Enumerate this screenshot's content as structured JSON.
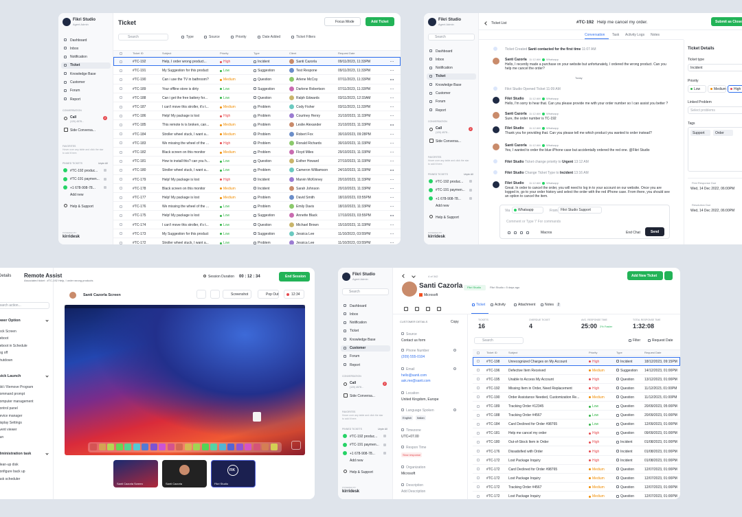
{
  "common": {
    "search": "Search"
  },
  "sidebar": {
    "workspace": "Fikri Studio",
    "role": "Agent Admin",
    "nav": [
      "Dashboard",
      "Inbox",
      "Notification",
      "Ticket",
      "Knowledge Base",
      "Customer",
      "Forum",
      "Report"
    ],
    "conversation_label": "CONVERSATION",
    "call": "Call",
    "call_number": "(120) 4578...",
    "call_badge": 2,
    "side_conversation": "Side Conversa...",
    "favorites_label": "FAVORITES",
    "favorites_hint": "Hover over any table and click the star to add it here.",
    "pinned_label": "PINNED TICKETS",
    "unpin": "Unpin All",
    "pinned": [
      "#TC-192 produc...",
      "#TC-191 paymen...",
      "+1 678-908-78..."
    ],
    "add_new": "Add new",
    "help": "Help & Support",
    "powered": "POWERED BY",
    "brand": "kirridesk"
  },
  "ticket_list": {
    "title": "Ticket",
    "focus_mode": "Focus Mode",
    "add_ticket": "Add Ticket",
    "filters": [
      "Type",
      "Source",
      "Priority",
      "Date Added",
      "Ticket Filters"
    ],
    "columns": [
      "Ticket ID",
      "Subject",
      "Priority",
      "Type",
      "Client",
      "Request Date"
    ],
    "rows": [
      [
        "#TC-192",
        "Help, I order wrong product...",
        "High",
        "Incident",
        "Santi Cazorla",
        "09/11/2023, 11:33PM"
      ],
      [
        "#TC-191",
        "My Suggestion for this product",
        "Low",
        "Suggestion",
        "Test Respone",
        "09/11/2023, 11:33PM"
      ],
      [
        "#TC-190",
        "Can i use the TV in bathroom?",
        "Medium",
        "Question",
        "Arlene McCoy",
        "07/11/2023, 11:33PM"
      ],
      [
        "#TC-189",
        "Your offline store is dirty",
        "Low",
        "Suggestion",
        "Darlene Robertson",
        "07/11/2023, 11:33PM"
      ],
      [
        "#TC-188",
        "Can i get the free battery for...",
        "Low",
        "Question",
        "Ralph Edwards",
        "03/11/2023, 12:33AM"
      ],
      [
        "#TC-187",
        "I can't move this stroller, it's t...",
        "Medium",
        "Problem",
        "Cody Fisher",
        "03/11/2023, 11:33PM"
      ],
      [
        "#TC-186",
        "Help! My package is lost",
        "High",
        "Problem",
        "Courtney Henry",
        "31/10/2023, 11:33PM"
      ],
      [
        "#TC-185",
        "This remote tv is broken, can...",
        "Medium",
        "Problem",
        "Leslie Alexander",
        "31/10/2023, 11:33PM"
      ],
      [
        "#TC-184",
        "Stroller wheel stuck, I want a...",
        "Medium",
        "Problem",
        "Robert Fox",
        "30/10/2023, 09:28PM"
      ],
      [
        "#TC-183",
        "We missing the wheel of the ...",
        "High",
        "Problem",
        "Ronald Richards",
        "30/10/2023, 11:33PM"
      ],
      [
        "#TC-182",
        "Black screen on this monitor",
        "Medium",
        "Problem",
        "Floyd Miles",
        "29/10/2023, 11:33PM"
      ],
      [
        "#TC-181",
        "How to install this? can you h...",
        "Low",
        "Question",
        "Esther Howard",
        "27/10/2023, 11:33PM"
      ],
      [
        "#TC-180",
        "Stroller wheel stuck, I want a...",
        "Low",
        "Problem",
        "Cameron Williamson",
        "24/10/2023, 11:33PM"
      ],
      [
        "#TC-179",
        "Help! My package is lost",
        "High",
        "Incident",
        "Marvin McKinney",
        "20/10/2023, 11:33PM"
      ],
      [
        "#TC-178",
        "Black screen on this monitor",
        "Medium",
        "Incident",
        "Sarah Johnson",
        "20/10/2023, 11:33PM"
      ],
      [
        "#TC-177",
        "Help! My package is lost",
        "Medium",
        "Problem",
        "David Smith",
        "18/10/2023, 03:55PM"
      ],
      [
        "#TC-176",
        "We missing the wheel of the ...",
        "Low",
        "Problem",
        "Emily Davis",
        "18/10/2023, 11:33PM"
      ],
      [
        "#TC-175",
        "Help! My package is lost",
        "Low",
        "Suggestion",
        "Annette Black",
        "17/10/2023, 03:55PM"
      ],
      [
        "#TC-174",
        "I can't move this stroller, it's t...",
        "Low",
        "Question",
        "Michael Brown",
        "15/10/2023, 11:33PM"
      ],
      [
        "#TC-173",
        "My Suggestion for this product",
        "Low",
        "Suggestion",
        "Jessica Lee",
        "11/10/2023, 03:55PM"
      ],
      [
        "#TC-172",
        "Stroller wheel stuck, I want a...",
        "Low",
        "Problem",
        "Jessica Lee",
        "11/10/2023, 03:55PM"
      ]
    ]
  },
  "ticket_detail": {
    "back": "Ticket List",
    "ticket_id": "#TC-192",
    "subject": "Help me cancel my order.",
    "submit": "Submit as Close",
    "tabs": [
      "Conversation",
      "Task",
      "Activity Logs",
      "Notes"
    ],
    "timeline": [
      {
        "parts": [
          "Ticket Created",
          "Santi contacted for the first time"
        ],
        "time": "11:07 AM"
      },
      {
        "author": "Santi Cazorla",
        "time": "11:12 AM",
        "via": "Whatsapp",
        "text": "Hello, I recently made a purchase on your website but unfortunately, I ordered the wrong product. Can you help me cancel the order?"
      },
      {
        "label": "Today"
      },
      {
        "parts": [
          "Fikri Studio",
          "Opened Ticket"
        ],
        "time": "11:09 AM"
      },
      {
        "author": "Fikri Studio",
        "time": "11:12 AM",
        "via": "Whatsapp",
        "text": "Hello, I'm sorry to hear that. Can you please provide me with your order number so I can assist you better ?"
      },
      {
        "author": "Santi Cazorla",
        "time": "11:12 AM",
        "via": "Whatsapp",
        "text": "Sure, the order number is TC-192"
      },
      {
        "author": "Fikri Studio",
        "time": "11:12 AM",
        "via": "Whatsapp",
        "text": "Thank you for providing that. Can you please tell me which product you wanted to order instead?"
      },
      {
        "author": "Santi Cazorla",
        "time": "11:12 AM",
        "via": "Whatsapp",
        "text": "Yes, I wanted to order the blue iPhone case but accidentally ordered the red one. @Fikri Studio"
      },
      {
        "parts": [
          "Fikri Studio",
          "Ticket change priority to",
          "Urgent"
        ],
        "time": "13:12 AM"
      },
      {
        "parts": [
          "Fikri Studio",
          "Change Ticket Type to",
          "Incident"
        ],
        "time": "13:16 AM"
      },
      {
        "author": "Fikri Studio",
        "time": "11:12 AM",
        "via": "Whatsapp",
        "text": "Great. In order to cancel the order, you will need to log in to your account on our website. Once you are logged in, go to your order history and select the order with the red iPhone case. From there, you should see an option to cancel the item."
      }
    ],
    "composer": {
      "via": "Via",
      "channel": "Whatsapp",
      "from": "From",
      "sender": "Fikri Studio Support",
      "placeholder": "Comment or Type '/' For commands",
      "macros": "Macros",
      "end_chat": "End Chat",
      "send": "Send"
    },
    "details": {
      "title": "Ticket Details",
      "type_label": "Ticket type",
      "type": "Incident",
      "priority_label": "Priority",
      "priorities": [
        "Low",
        "Medium",
        "High"
      ],
      "linked_label": "Linked Problem",
      "linked_placeholder": "Select problems",
      "tags_label": "Tags",
      "tags": [
        "Support",
        "Order"
      ],
      "first_due_label": "First Response Due",
      "first_due": "Wed, 14 Dec 2022, 06:00PM",
      "resolution_label": "Resolution Due",
      "resolution_due": "Wed, 14 Dec 2022, 06:00PM"
    }
  },
  "remote_assist": {
    "back": "Details",
    "title": "Remote Assist",
    "ticket": "Associated ticket : #TC-192 Help, I order wrong products",
    "duration_label": "Session Duration",
    "duration": "00 : 12 : 34",
    "end": "End Session",
    "search": "Search action...",
    "groups": [
      {
        "title": "Power Option",
        "items": [
          "Lock Screen",
          "Reboot",
          "Reboot in Schedule",
          "Log off",
          "Shutdown"
        ]
      },
      {
        "title": "Quick Launch",
        "items": [
          "Add / Remove Program",
          "Command prompt",
          "Computer management",
          "Control panel",
          "Device manager",
          "Display Settings",
          "Event viewer",
          "Run"
        ]
      },
      {
        "title": "Administration task",
        "items": [
          "Clean-up disk",
          "Configure back up",
          "Task scheduler"
        ]
      }
    ],
    "screen_title": "Santi Cazorla Screen",
    "tools": [
      "Screenshot",
      "Pop Out"
    ],
    "timer": "12:34",
    "thumbnails": [
      "Santi Cazorla Screen",
      "Santi Cazorla",
      "Fikri Studio"
    ],
    "logo": "FIK"
  },
  "customer": {
    "pager": "4 of 342",
    "add_ticket": "Add New Ticket",
    "name": "Santi Cazorla",
    "tag": "Fikri Studio",
    "meta": "Fikri Studio • 5 days ago",
    "company": "Microsoft",
    "tabs": [
      "Ticket",
      "Activity",
      "Attachment",
      "Notes"
    ],
    "notes_count": 2,
    "details_title": "CUSTOMER DETAILS",
    "copy": "Copy",
    "fields": [
      {
        "label": "Source",
        "values": [
          "Contact us form"
        ]
      },
      {
        "label": "Phone Number",
        "values": [
          "(209) 555-0104"
        ]
      },
      {
        "label": "Email",
        "values": [
          "hello@santi.com",
          "ask.me@santi.com"
        ]
      },
      {
        "label": "Location",
        "values": [
          "United Kingdom, Europe"
        ]
      },
      {
        "label": "Language Spoken",
        "chips": [
          "English",
          "Italian"
        ]
      },
      {
        "label": "Timezone",
        "values": [
          "UTC+07.00"
        ]
      },
      {
        "label": "Respon Time",
        "chips": [
          "Slow response"
        ]
      },
      {
        "label": "Organization",
        "values": [
          "Microsoft"
        ]
      },
      {
        "label": "Description",
        "values": [
          "Add Description"
        ]
      }
    ],
    "stats": [
      {
        "label": "TICKETS",
        "value": 16
      },
      {
        "label": "OVERDUE TICKET",
        "value": 4
      },
      {
        "label": "AVG. RESPONSE TIME",
        "value": "25:00",
        "note": "2% Faster"
      },
      {
        "label": "TOTAL RESPONSE TIME",
        "value": "1:32:08"
      }
    ],
    "filter": "Filter",
    "sort": "Request Date",
    "columns": [
      "Ticket ID",
      "Subject",
      "Priority",
      "Type",
      "Request Date"
    ],
    "rows": [
      [
        "#TC-198",
        "Unrecognized Charges on My Account",
        "High",
        "Incident",
        "18/12/2023, 09:15PM"
      ],
      [
        "#TC-196",
        "Defective Item Received",
        "Medium",
        "Suggestion",
        "14/12/2023, 01:00PM"
      ],
      [
        "#TC-195",
        "Unable to Access My Account",
        "High",
        "Question",
        "13/12/2023, 01:00PM"
      ],
      [
        "#TC-192",
        "Missing Item in Order, Need Replacement",
        "High",
        "Question",
        "11/12/2023, 01:00PM"
      ],
      [
        "#TC-190",
        "Order Assistance Needed, Customization Re...",
        "Medium",
        "Question",
        "11/12/2023, 01:00PM"
      ],
      [
        "#TC-189",
        "Tracking Order #12345",
        "Low",
        "Question",
        "20/09/2023, 05:00PM"
      ],
      [
        "#TC-188",
        "Tracking Order #4567",
        "Low",
        "Question",
        "20/09/2023, 01:00PM"
      ],
      [
        "#TC-184",
        "Card Declined for Order #98765",
        "Low",
        "Question",
        "12/09/2023, 01:00PM"
      ],
      [
        "#TC-181",
        "Help me cancel my order",
        "High",
        "Question",
        "09/09/2023, 01:00PM"
      ],
      [
        "#TC-180",
        "Out-of-Stock Item in Order",
        "High",
        "Incident",
        "01/08/2023, 01:00PM"
      ],
      [
        "#TC-176",
        "Dissatisfied with Order",
        "High",
        "Incident",
        "01/08/2023, 01:00PM"
      ],
      [
        "#TC-172",
        "Lost Package Inquiry",
        "High",
        "Incident",
        "01/08/2023, 01:00PM"
      ],
      [
        "#TC-172",
        "Card Declined for Order #98765",
        "Medium",
        "Question",
        "12/07/2023, 01:00PM"
      ],
      [
        "#TC-172",
        "Lost Package Inquiry",
        "Medium",
        "Question",
        "12/07/2023, 01:00PM"
      ],
      [
        "#TC-172",
        "Tracking Order #4567",
        "Medium",
        "Question",
        "12/07/2023, 01:00PM"
      ],
      [
        "#TC-172",
        "Lost Package Inquiry",
        "Medium",
        "Question",
        "12/07/2023, 01:00PM"
      ]
    ]
  }
}
